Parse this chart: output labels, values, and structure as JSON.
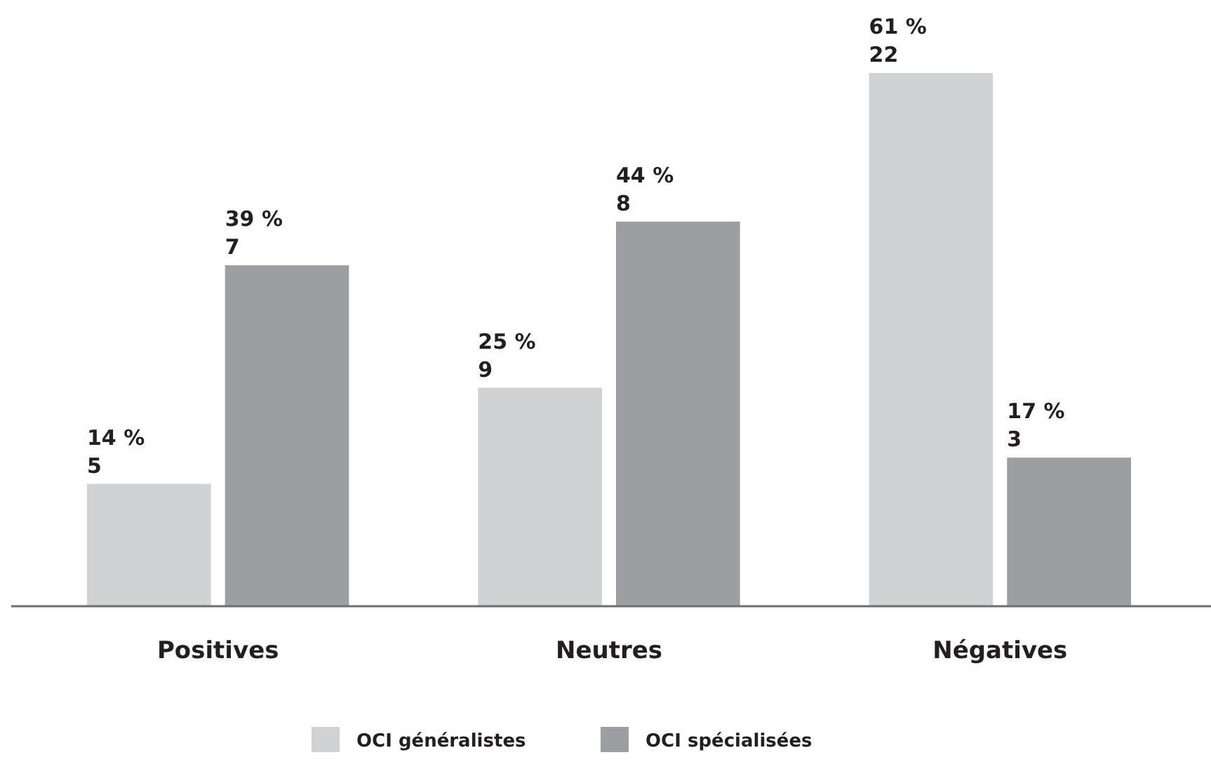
{
  "chart_data": {
    "type": "bar",
    "categories": [
      "Positives",
      "Neutres",
      "Négatives"
    ],
    "series": [
      {
        "name": "OCI généralistes",
        "color": "#d1d2d4",
        "values": [
          14,
          25,
          61
        ],
        "value_labels": [
          "14 %\n5",
          "25 %\n9",
          "61 %\n22"
        ]
      },
      {
        "name": "OCI spécialisées",
        "color": "#9d9ea2",
        "values": [
          39,
          44,
          17
        ],
        "value_labels": [
          "39 %\n7",
          "44 %\n8",
          "17 %\n3"
        ]
      }
    ],
    "legend": "bottom"
  }
}
